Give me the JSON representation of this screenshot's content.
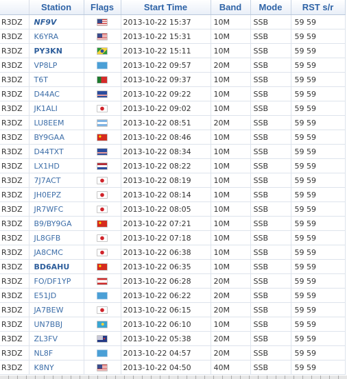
{
  "columns": [
    "",
    "Station",
    "Flags",
    "Start Time",
    "Band",
    "Mode",
    "RST s/r"
  ],
  "rows": [
    {
      "call": "R3DZ",
      "station": "NF9V",
      "style": "bolditalic",
      "flag": "us-flag-icon",
      "flag_class": "us",
      "time": "2013-10-22 15:37",
      "band": "10M",
      "mode": "SSB",
      "rst": "59 59"
    },
    {
      "call": "R3DZ",
      "station": "K6YRA",
      "style": "normal",
      "flag": "us-flag-icon",
      "flag_class": "us",
      "time": "2013-10-22 15:31",
      "band": "10M",
      "mode": "SSB",
      "rst": "59 59"
    },
    {
      "call": "R3DZ",
      "station": "PY3KN",
      "style": "bold",
      "flag": "brazil-flag-icon",
      "flag_class": "br",
      "time": "2013-10-22 15:11",
      "band": "10M",
      "mode": "SSB",
      "rst": "59 59"
    },
    {
      "call": "R3DZ",
      "station": "VP8LP",
      "style": "normal",
      "flag": "un-flag-icon",
      "flag_class": "un",
      "time": "2013-10-22 09:57",
      "band": "20M",
      "mode": "SSB",
      "rst": "59 59"
    },
    {
      "call": "R3DZ",
      "station": "T6T",
      "style": "normal",
      "flag": "portugal-flag-icon",
      "flag_class": "pt",
      "time": "2013-10-22 09:37",
      "band": "10M",
      "mode": "SSB",
      "rst": "59 59"
    },
    {
      "call": "R3DZ",
      "station": "D44AC",
      "style": "normal",
      "flag": "cape-verde-flag-icon",
      "flag_class": "cv",
      "time": "2013-10-22 09:22",
      "band": "10M",
      "mode": "SSB",
      "rst": "59 59"
    },
    {
      "call": "R3DZ",
      "station": "JK1ALI",
      "style": "normal",
      "flag": "japan-flag-icon",
      "flag_class": "jp",
      "time": "2013-10-22 09:02",
      "band": "10M",
      "mode": "SSB",
      "rst": "59 59"
    },
    {
      "call": "R3DZ",
      "station": "LU8EEM",
      "style": "normal",
      "flag": "argentina-flag-icon",
      "flag_class": "ar",
      "time": "2013-10-22 08:51",
      "band": "20M",
      "mode": "SSB",
      "rst": "59 59"
    },
    {
      "call": "R3DZ",
      "station": "BY9GAA",
      "style": "normal",
      "flag": "china-flag-icon",
      "flag_class": "cn",
      "time": "2013-10-22 08:46",
      "band": "10M",
      "mode": "SSB",
      "rst": "59 59"
    },
    {
      "call": "R3DZ",
      "station": "D44TXT",
      "style": "normal",
      "flag": "cape-verde-flag-icon",
      "flag_class": "cv",
      "time": "2013-10-22 08:34",
      "band": "10M",
      "mode": "SSB",
      "rst": "59 59"
    },
    {
      "call": "R3DZ",
      "station": "LX1HD",
      "style": "normal",
      "flag": "netherlands-flag-icon",
      "flag_class": "nl",
      "time": "2013-10-22 08:22",
      "band": "10M",
      "mode": "SSB",
      "rst": "59 59"
    },
    {
      "call": "R3DZ",
      "station": "7J7ACT",
      "style": "normal",
      "flag": "japan-flag-icon",
      "flag_class": "jp",
      "time": "2013-10-22 08:19",
      "band": "10M",
      "mode": "SSB",
      "rst": "59 59"
    },
    {
      "call": "R3DZ",
      "station": "JH0EPZ",
      "style": "normal",
      "flag": "japan-flag-icon",
      "flag_class": "jp",
      "time": "2013-10-22 08:14",
      "band": "10M",
      "mode": "SSB",
      "rst": "59 59"
    },
    {
      "call": "R3DZ",
      "station": "JR7WFC",
      "style": "normal",
      "flag": "japan-flag-icon",
      "flag_class": "jp",
      "time": "2013-10-22 08:05",
      "band": "10M",
      "mode": "SSB",
      "rst": "59 59"
    },
    {
      "call": "R3DZ",
      "station": "B9/BY9GA",
      "style": "normal",
      "flag": "china-flag-icon",
      "flag_class": "cn",
      "time": "2013-10-22 07:21",
      "band": "10M",
      "mode": "SSB",
      "rst": "59 59"
    },
    {
      "call": "R3DZ",
      "station": "JL8GFB",
      "style": "normal",
      "flag": "japan-flag-icon",
      "flag_class": "jp",
      "time": "2013-10-22 07:18",
      "band": "10M",
      "mode": "SSB",
      "rst": "59 59"
    },
    {
      "call": "R3DZ",
      "station": "JA8CMC",
      "style": "normal",
      "flag": "japan-flag-icon",
      "flag_class": "jp",
      "time": "2013-10-22 06:38",
      "band": "10M",
      "mode": "SSB",
      "rst": "59 59"
    },
    {
      "call": "R3DZ",
      "station": "BD6AHU",
      "style": "bold",
      "flag": "china-flag-icon",
      "flag_class": "cn",
      "time": "2013-10-22 06:35",
      "band": "10M",
      "mode": "SSB",
      "rst": "59 59"
    },
    {
      "call": "R3DZ",
      "station": "FO/DF1YP",
      "style": "normal",
      "flag": "french-polynesia-flag-icon",
      "flag_class": "pf",
      "time": "2013-10-22 06:28",
      "band": "20M",
      "mode": "SSB",
      "rst": "59 59"
    },
    {
      "call": "R3DZ",
      "station": "E51JD",
      "style": "normal",
      "flag": "un-flag-icon",
      "flag_class": "un",
      "time": "2013-10-22 06:22",
      "band": "20M",
      "mode": "SSB",
      "rst": "59 59"
    },
    {
      "call": "R3DZ",
      "station": "JA7BEW",
      "style": "normal",
      "flag": "japan-flag-icon",
      "flag_class": "jp",
      "time": "2013-10-22 06:15",
      "band": "20M",
      "mode": "SSB",
      "rst": "59 59"
    },
    {
      "call": "R3DZ",
      "station": "UN7BBJ",
      "style": "normal",
      "flag": "kazakhstan-flag-icon",
      "flag_class": "kz",
      "time": "2013-10-22 06:10",
      "band": "10M",
      "mode": "SSB",
      "rst": "59 59"
    },
    {
      "call": "R3DZ",
      "station": "ZL3FV",
      "style": "normal",
      "flag": "new-zealand-flag-icon",
      "flag_class": "nz",
      "time": "2013-10-22 05:38",
      "band": "20M",
      "mode": "SSB",
      "rst": "59 59"
    },
    {
      "call": "R3DZ",
      "station": "NL8F",
      "style": "normal",
      "flag": "un-flag-icon",
      "flag_class": "un",
      "time": "2013-10-22 04:57",
      "band": "20M",
      "mode": "SSB",
      "rst": "59 59"
    },
    {
      "call": "R3DZ",
      "station": "K8NY",
      "style": "normal",
      "flag": "us-flag-icon",
      "flag_class": "us",
      "time": "2013-10-22 04:50",
      "band": "40M",
      "mode": "SSB",
      "rst": "59 59"
    }
  ]
}
